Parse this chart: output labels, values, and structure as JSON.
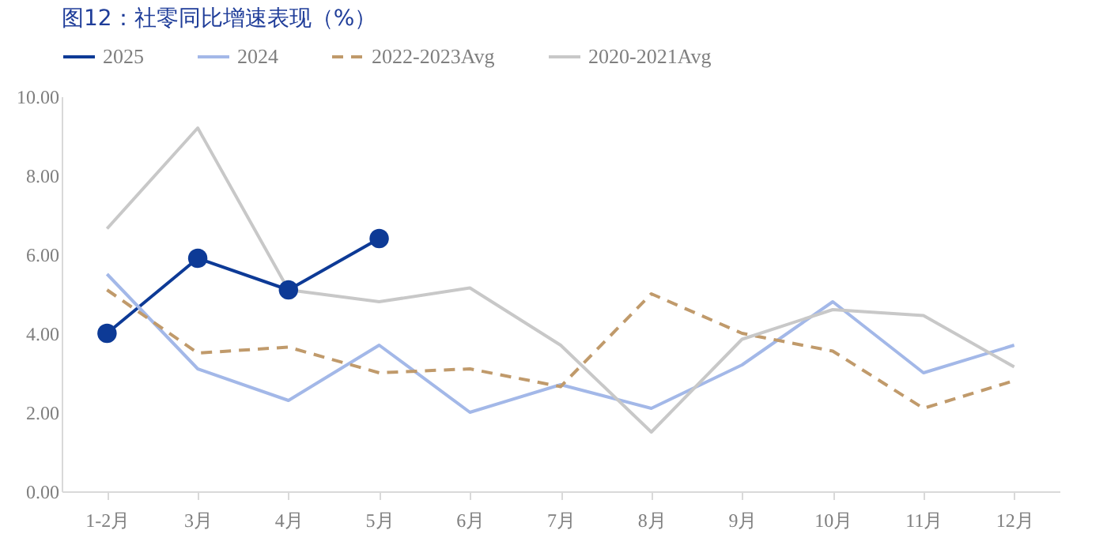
{
  "chart_data": {
    "type": "line",
    "title": "图12：社零同比增速表现（%）",
    "categories": [
      "1-2月",
      "3月",
      "4月",
      "5月",
      "6月",
      "7月",
      "8月",
      "9月",
      "10月",
      "11月",
      "12月"
    ],
    "series": [
      {
        "name": "2025",
        "color": "#0d3a96",
        "marker": "circle",
        "line_style": "solid",
        "values": [
          4.0,
          5.9,
          5.1,
          6.4,
          null,
          null,
          null,
          null,
          null,
          null,
          null
        ]
      },
      {
        "name": "2024",
        "color": "#a3b8e8",
        "line_style": "solid",
        "values": [
          5.5,
          3.1,
          2.3,
          3.7,
          2.0,
          2.7,
          2.1,
          3.2,
          4.8,
          3.0,
          3.7
        ]
      },
      {
        "name": "2022-2023Avg",
        "color": "#c09a6b",
        "line_style": "dashed",
        "values": [
          5.1,
          3.5,
          3.65,
          3.0,
          3.1,
          2.65,
          5.0,
          4.0,
          3.55,
          2.1,
          2.8
        ]
      },
      {
        "name": "2020-2021Avg",
        "color": "#c8c8c8",
        "line_style": "solid",
        "values": [
          6.65,
          9.2,
          5.1,
          4.8,
          5.15,
          3.7,
          1.5,
          3.85,
          4.6,
          4.45,
          3.15
        ]
      }
    ],
    "ylim": [
      0,
      10
    ],
    "yticks": [
      {
        "value": 0,
        "label": "0.00"
      },
      {
        "value": 2,
        "label": "2.00"
      },
      {
        "value": 4,
        "label": "4.00"
      },
      {
        "value": 6,
        "label": "6.00"
      },
      {
        "value": 8,
        "label": "8.00"
      },
      {
        "value": 10,
        "label": "10.00"
      }
    ],
    "grid": false,
    "legend": "top"
  }
}
